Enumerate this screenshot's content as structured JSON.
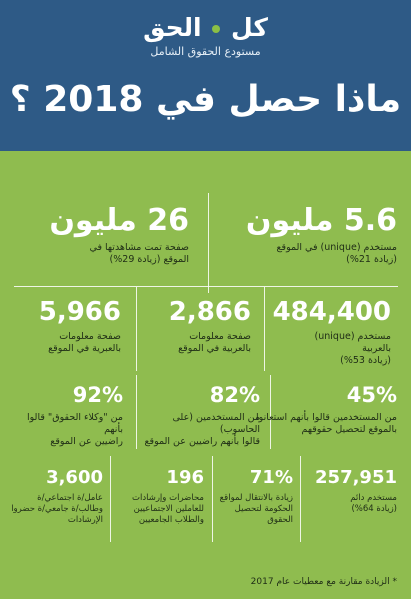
{
  "header": {
    "logo_part1": "كل",
    "logo_part2": "الحق",
    "tagline": "مستودع الحقوق الشامل",
    "headline": "ماذا حصل في 2018 ؟"
  },
  "stats": {
    "users_unique": {
      "value": "5.6 مليون",
      "line1": "مستخدم (unique) في الموقع",
      "line2": "(زيادة 21%)"
    },
    "pages_viewed": {
      "value": "26 مليون",
      "line1": "صفحة تمت مشاهدتها في",
      "line2": "الموقع (زيادة 29%)"
    },
    "arabic_users": {
      "value": "484,400",
      "line1": "مستخدم (unique)",
      "line2": "بالعربية",
      "line3": "(زيادة 53%)"
    },
    "arabic_pages": {
      "value": "2,866",
      "line1": "صفحة معلومات",
      "line2": "بالعربية في الموقع"
    },
    "hebrew_pages": {
      "value": "5,966",
      "line1": "صفحة معلومات",
      "line2": "بالعبرية في الموقع"
    },
    "users_helped": {
      "value": "45%",
      "line1": "من المستخدمين قالوا بأنهم استعانوا",
      "line2": "بالموقع لتحصيل حقوقهم"
    },
    "users_satisfied": {
      "value": "82%",
      "line1": "من المستخدمين (على الحاسوب)",
      "line2": "قالوا بأنهم راضيين عن الموقع"
    },
    "agents_satisfied": {
      "value": "92%",
      "line1": "من \"وكلاء الحقوق\" قالوا بأنهم",
      "line2": "راضيين عن الموقع"
    },
    "permanent_users": {
      "value": "257,951",
      "line1": "مستخدم دائم",
      "line2": "(زيادة 64%)"
    },
    "gov_sites": {
      "value": "71%",
      "line1": "زيادة بالانتقال لمواقع",
      "line2": "الحكومة لتحصيل",
      "line3": "الحقوق"
    },
    "lectures": {
      "value": "196",
      "line1": "محاضرات وإرشادات",
      "line2": "للعاملين الاجتماعيين",
      "line3": "والطلاب الجامعيين"
    },
    "workers": {
      "value": "3,600",
      "line1": "عامل/ة اجتماعي/ة",
      "line2": "وطالب/ة جامعي/ة حضروا",
      "line3": "الإرشادات"
    }
  },
  "footnote": "* الزيادة مقارنة مع معطيات عام 2017",
  "colors": {
    "header_bg": "#2e5a86",
    "body_bg": "#8fbc4f",
    "text_light": "#ffffff",
    "text_dark": "#1f2d16",
    "logo_accent": "#8bbf45"
  }
}
